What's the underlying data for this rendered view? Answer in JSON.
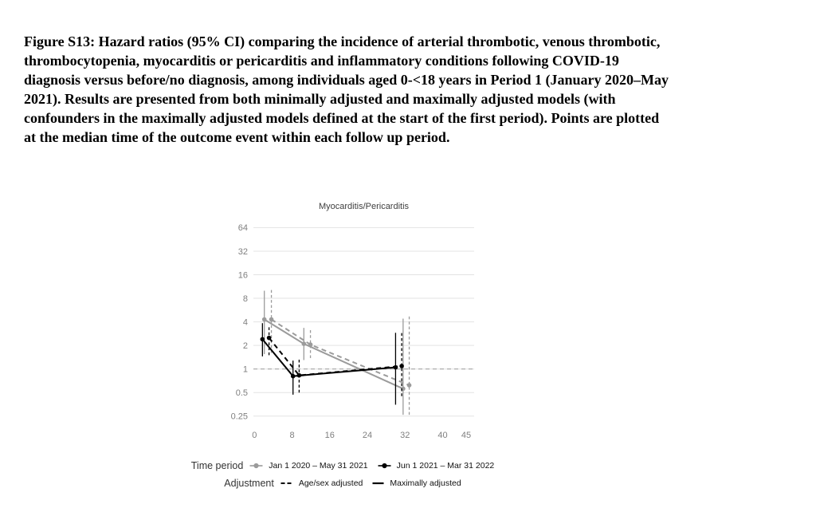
{
  "caption": {
    "lines": [
      "Figure S13: Hazard ratios (95% CI) comparing the incidence of arterial thrombotic, venous thrombotic,",
      "thrombocytopenia, myocarditis or pericarditis and inflammatory conditions following COVID-19",
      "diagnosis versus before/no diagnosis, among individuals aged 0-<18 years in Period 1 (January 2020–May",
      "2021). Results are presented from both minimally adjusted and maximally adjusted models (with",
      "confounders in the maximally adjusted models defined at the start of the first period). Points are plotted",
      "at the median time of the outcome event within each follow up period."
    ]
  },
  "chart_data": {
    "type": "line",
    "title": "Myocarditis/Pericarditis",
    "xlabel": "",
    "ylabel": "",
    "y_scale": "log2",
    "grid": true,
    "legend_position": "bottom",
    "x_ticks": [
      0,
      8,
      16,
      24,
      32,
      40,
      45
    ],
    "y_ticks": [
      64,
      32,
      16,
      8,
      4,
      2,
      1,
      0.5,
      0.25
    ],
    "y_tick_labels": [
      "64",
      "32",
      "16",
      "8",
      "4",
      "2",
      "1",
      "0.5",
      "0.25"
    ],
    "xlim": [
      -2,
      47
    ],
    "ylim": [
      0.25,
      64
    ],
    "reference_line_y": 1,
    "colors": {
      "period_1": "#9b9b9b",
      "period_2": "#000000",
      "grid": "#e3e3e3",
      "reference_line": "#a8a8a8",
      "tick_label": "#7f7f7f",
      "title": "#404040"
    },
    "series": [
      {
        "name": "Jan 1 2020 – May 31 2021 — Maximally adjusted",
        "period": "Jan 1 2020 – May 31 2021",
        "adjustment": "Maximally adjusted",
        "color": "#9b9b9b",
        "line_style": "solid",
        "points": [
          {
            "x": 2.1,
            "hr": 4.3,
            "ci_low": 1.55,
            "ci_high": 10.0
          },
          {
            "x": 10.5,
            "hr": 2.1,
            "ci_low": 1.3,
            "ci_high": 3.35
          },
          {
            "x": 31.6,
            "hr": 0.56,
            "ci_low": 0.26,
            "ci_high": 4.4
          }
        ]
      },
      {
        "name": "Jan 1 2020 – May 31 2021 — Age/sex adjusted",
        "period": "Jan 1 2020 – May 31 2021",
        "adjustment": "Age/sex adjusted",
        "color": "#9b9b9b",
        "line_style": "dashed",
        "points": [
          {
            "x": 3.6,
            "hr": 4.3,
            "ci_low": 1.6,
            "ci_high": 10.5
          },
          {
            "x": 11.9,
            "hr": 2.05,
            "ci_low": 1.38,
            "ci_high": 3.25
          },
          {
            "x": 32.9,
            "hr": 0.62,
            "ci_low": 0.26,
            "ci_high": 5.0
          }
        ]
      },
      {
        "name": "Jun 1 2021 – Mar 31 2022 — Maximally adjusted",
        "period": "Jun 1 2021 – Mar 31 2022",
        "adjustment": "Maximally adjusted",
        "color": "#000000",
        "line_style": "solid",
        "points": [
          {
            "x": 1.7,
            "hr": 2.4,
            "ci_low": 1.45,
            "ci_high": 3.85
          },
          {
            "x": 8.2,
            "hr": 0.81,
            "ci_low": 0.47,
            "ci_high": 1.28
          },
          {
            "x": 30.0,
            "hr": 1.05,
            "ci_low": 0.35,
            "ci_high": 2.9
          }
        ]
      },
      {
        "name": "Jun 1 2021 – Mar 31 2022 — Age/sex adjusted",
        "period": "Jun 1 2021 – Mar 31 2022",
        "adjustment": "Age/sex adjusted",
        "color": "#000000",
        "line_style": "dashed",
        "points": [
          {
            "x": 3.1,
            "hr": 2.5,
            "ci_low": 1.5,
            "ci_high": 3.6
          },
          {
            "x": 9.5,
            "hr": 0.83,
            "ci_low": 0.5,
            "ci_high": 1.35
          },
          {
            "x": 31.3,
            "hr": 1.09,
            "ci_low": 0.45,
            "ci_high": 2.9
          }
        ]
      }
    ],
    "legend": {
      "time_period_label": "Time period",
      "adjustment_label": "Adjustment",
      "period_items": [
        "Jan 1 2020 – May 31 2021",
        "Jun 1 2021 – Mar 31 2022"
      ],
      "adjustment_items": [
        "Age/sex adjusted",
        "Maximally adjusted"
      ]
    }
  }
}
